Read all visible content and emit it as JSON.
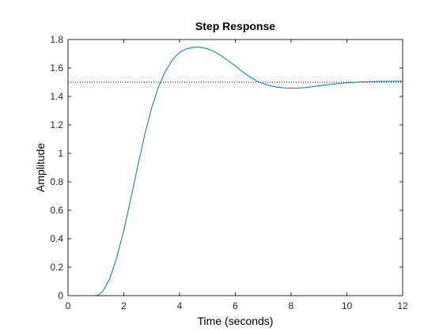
{
  "chart_data": {
    "type": "line",
    "title": "Step Response",
    "xlabel": "Time (seconds)",
    "ylabel": "Amplitude",
    "xlim": [
      0,
      12
    ],
    "ylim": [
      0,
      1.8
    ],
    "xticks": [
      0,
      2,
      4,
      6,
      8,
      10,
      12
    ],
    "xtick_labels": [
      "0",
      "2",
      "4",
      "6",
      "8",
      "10",
      "12"
    ],
    "yticks": [
      0,
      0.2,
      0.4,
      0.6,
      0.8,
      1,
      1.2,
      1.4,
      1.6,
      1.8
    ],
    "ytick_labels": [
      "0",
      "0.2",
      "0.4",
      "0.6",
      "0.8",
      "1",
      "1.2",
      "1.4",
      "1.6",
      "1.8"
    ],
    "grid": false,
    "series": [
      {
        "color": "#0072bd",
        "x": [
          0,
          1,
          1.1,
          1.25,
          1.5,
          1.75,
          2,
          2.25,
          2.5,
          2.75,
          3,
          3.25,
          3.5,
          3.75,
          4,
          4.25,
          4.5,
          4.65,
          4.8,
          5,
          5.25,
          5.5,
          5.75,
          6,
          6.25,
          6.5,
          6.75,
          7,
          7.25,
          7.5,
          7.75,
          8,
          8.25,
          8.5,
          8.75,
          9,
          9.25,
          9.5,
          9.75,
          10,
          10.5,
          11,
          11.5,
          12
        ],
        "y": [
          0,
          0,
          0.005,
          0.03,
          0.12,
          0.27,
          0.46,
          0.68,
          0.91,
          1.13,
          1.32,
          1.47,
          1.58,
          1.66,
          1.71,
          1.735,
          1.745,
          1.747,
          1.744,
          1.735,
          1.715,
          1.685,
          1.65,
          1.615,
          1.575,
          1.54,
          1.51,
          1.49,
          1.475,
          1.465,
          1.46,
          1.458,
          1.459,
          1.462,
          1.468,
          1.474,
          1.481,
          1.487,
          1.492,
          1.496,
          1.502,
          1.505,
          1.506,
          1.506
        ]
      }
    ],
    "reference_line": {
      "y": 1.5,
      "style": "dotted",
      "color": "#000000"
    }
  }
}
